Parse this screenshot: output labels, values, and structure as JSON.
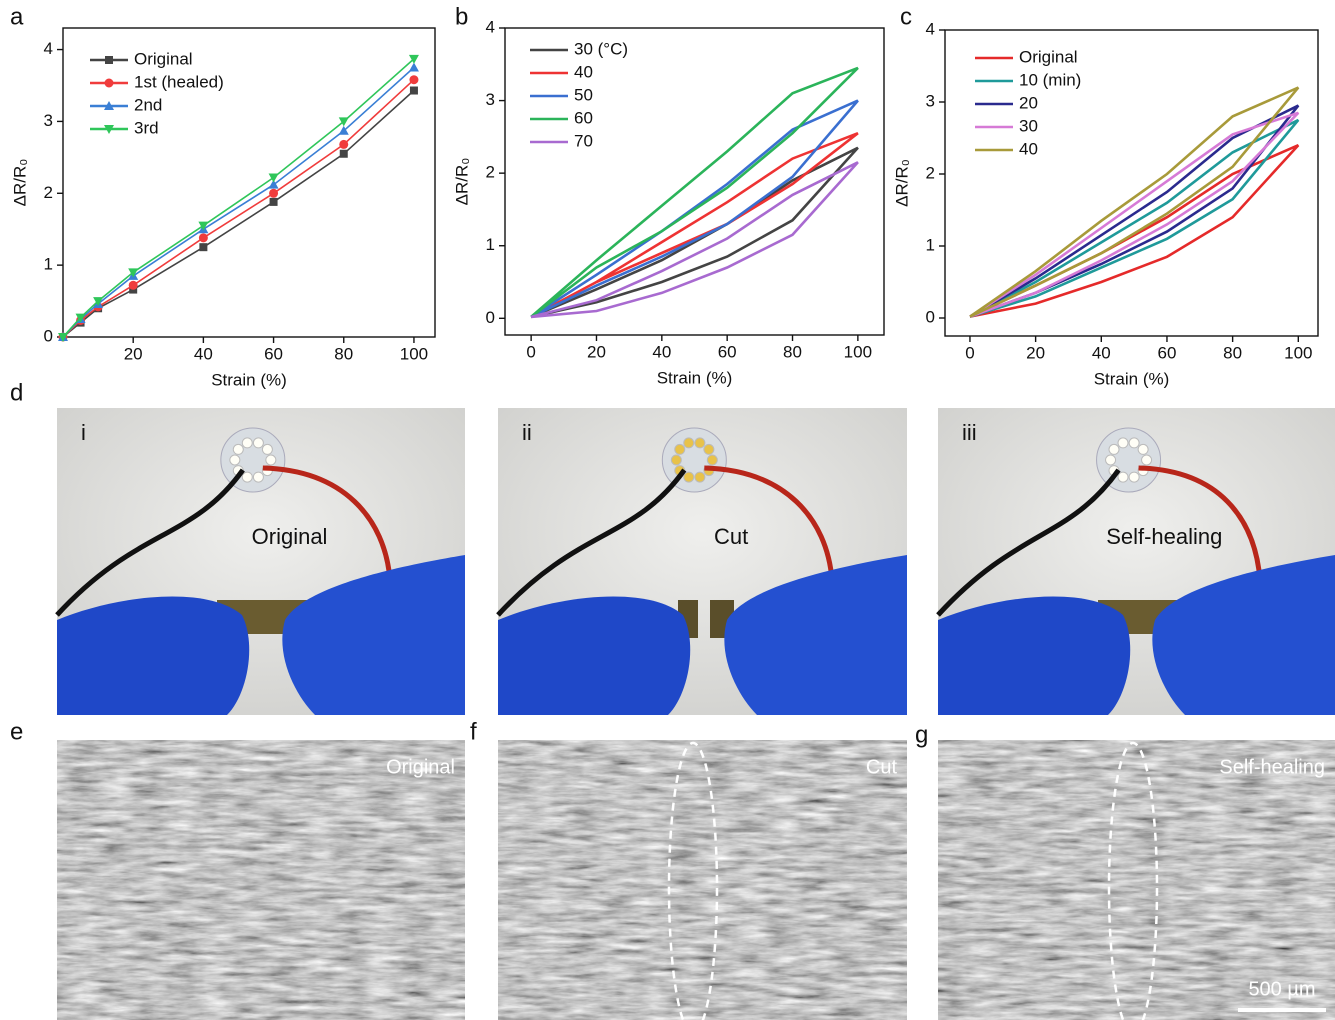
{
  "chart_data": [
    {
      "type": "line",
      "xlabel": "Strain (%)",
      "ylabel": "ΔR/R₀",
      "x": [
        0,
        5,
        10,
        20,
        40,
        60,
        80,
        100
      ],
      "xlim": [
        0,
        106
      ],
      "ylim": [
        0,
        4.3
      ],
      "xticks": [
        20,
        40,
        60,
        80,
        100
      ],
      "yticks": [
        0,
        1,
        2,
        3,
        4
      ],
      "legend": "upper left",
      "series": [
        {
          "name": "Original",
          "color": "#444444",
          "marker": "square",
          "values": [
            0,
            0.2,
            0.4,
            0.66,
            1.25,
            1.88,
            2.55,
            3.43
          ]
        },
        {
          "name": "1st (healed)",
          "color": "#f03c3c",
          "marker": "circle",
          "values": [
            0,
            0.23,
            0.42,
            0.72,
            1.38,
            2.0,
            2.68,
            3.58
          ]
        },
        {
          "name": "2nd",
          "color": "#3a7fd5",
          "marker": "triangle-up",
          "values": [
            0,
            0.25,
            0.46,
            0.85,
            1.5,
            2.12,
            2.87,
            3.75
          ]
        },
        {
          "name": "3rd",
          "color": "#2fc65a",
          "marker": "triangle-down",
          "values": [
            0,
            0.27,
            0.5,
            0.9,
            1.55,
            2.22,
            3.0,
            3.87
          ]
        }
      ]
    },
    {
      "type": "line",
      "xlabel": "Strain (%)",
      "ylabel": "ΔR/R₀",
      "x": [
        0,
        20,
        40,
        60,
        80,
        100,
        80,
        60,
        40,
        20,
        0
      ],
      "xlim": [
        -8,
        108
      ],
      "ylim": [
        -0.23,
        4
      ],
      "xticks": [
        0,
        20,
        40,
        60,
        80,
        100
      ],
      "yticks": [
        0,
        1,
        2,
        3,
        4
      ],
      "legend": "upper left",
      "series": [
        {
          "name": "30 (°C)",
          "color": "#444444",
          "values": [
            0.02,
            0.22,
            0.5,
            0.85,
            1.35,
            2.35,
            1.9,
            1.3,
            0.8,
            0.4,
            0.02
          ]
        },
        {
          "name": "40",
          "color": "#ee3333",
          "values": [
            0.02,
            0.5,
            0.9,
            1.3,
            1.85,
            2.55,
            2.2,
            1.6,
            1.05,
            0.5,
            0.02
          ]
        },
        {
          "name": "50",
          "color": "#3a6fd0",
          "values": [
            0.02,
            0.45,
            0.85,
            1.3,
            1.95,
            3.0,
            2.6,
            1.85,
            1.2,
            0.6,
            0.02
          ]
        },
        {
          "name": "60",
          "color": "#2bb45a",
          "values": [
            0.02,
            0.7,
            1.2,
            1.8,
            2.55,
            3.45,
            3.1,
            2.3,
            1.55,
            0.8,
            0.02
          ]
        },
        {
          "name": "70",
          "color": "#a86ad0",
          "values": [
            0.02,
            0.1,
            0.35,
            0.7,
            1.15,
            2.15,
            1.7,
            1.1,
            0.65,
            0.25,
            0.02
          ]
        }
      ]
    },
    {
      "type": "line",
      "xlabel": "Strain (%)",
      "ylabel": "ΔR/R₀",
      "x": [
        0,
        20,
        40,
        60,
        80,
        100,
        80,
        60,
        40,
        20,
        0
      ],
      "xlim": [
        -7.6,
        106
      ],
      "ylim": [
        -0.25,
        4
      ],
      "xticks": [
        0,
        20,
        40,
        60,
        80,
        100
      ],
      "yticks": [
        0,
        1,
        2,
        3,
        4
      ],
      "legend": "upper left",
      "series": [
        {
          "name": "Original",
          "color": "#e52a2a",
          "values": [
            0.02,
            0.2,
            0.5,
            0.85,
            1.4,
            2.4,
            2.0,
            1.4,
            0.9,
            0.45,
            0.02
          ]
        },
        {
          "name": "10 (min)",
          "color": "#1f9a9a",
          "values": [
            0.02,
            0.3,
            0.7,
            1.1,
            1.65,
            2.75,
            2.3,
            1.6,
            1.05,
            0.5,
            0.02
          ]
        },
        {
          "name": "20",
          "color": "#2a2a8e",
          "values": [
            0.02,
            0.35,
            0.75,
            1.2,
            1.8,
            2.95,
            2.5,
            1.75,
            1.15,
            0.55,
            0.02
          ]
        },
        {
          "name": "30",
          "color": "#d67ad6",
          "values": [
            0.02,
            0.35,
            0.8,
            1.3,
            1.9,
            2.85,
            2.55,
            1.9,
            1.25,
            0.6,
            0.02
          ]
        },
        {
          "name": "40",
          "color": "#a89a3a",
          "values": [
            0.02,
            0.45,
            0.9,
            1.45,
            2.1,
            3.2,
            2.8,
            2.0,
            1.35,
            0.65,
            0.02
          ]
        }
      ]
    }
  ],
  "panels": {
    "letters": [
      "a",
      "b",
      "c",
      "d",
      "e",
      "f",
      "g"
    ],
    "photos": [
      {
        "index": "i",
        "label": "Original"
      },
      {
        "index": "ii",
        "label": "Cut"
      },
      {
        "index": "iii",
        "label": "Self-healing"
      }
    ],
    "sem": [
      {
        "label": "Original"
      },
      {
        "label": "Cut"
      },
      {
        "label": "Self-healing"
      }
    ],
    "scale_bar": "500 µm"
  }
}
